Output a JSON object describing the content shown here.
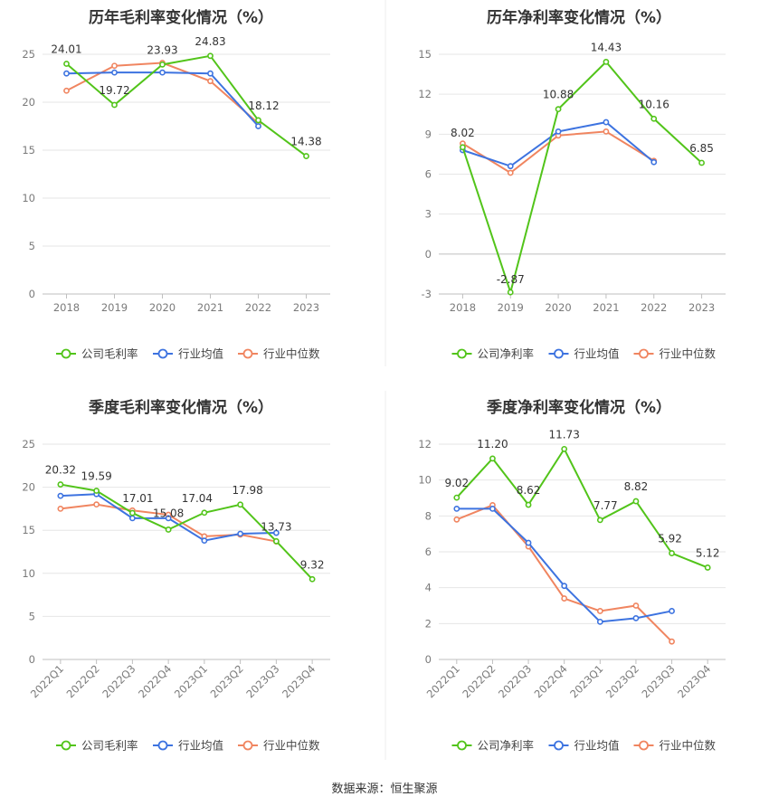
{
  "source": "数据来源：恒生聚源",
  "colors": {
    "company": "#52c41a",
    "industry_avg": "#3d73e0",
    "industry_median": "#f08560"
  },
  "chart_data": [
    {
      "type": "line",
      "title": "历年毛利率变化情况（%）",
      "categories": [
        "2018",
        "2019",
        "2020",
        "2021",
        "2022",
        "2023"
      ],
      "ylim": [
        0,
        25
      ],
      "yticks": [
        "0",
        "5",
        "10",
        "15",
        "20",
        "25"
      ],
      "legend_position": "bottom",
      "series": [
        {
          "name": "公司毛利率",
          "values": [
            24.01,
            19.72,
            23.93,
            24.83,
            18.12,
            14.38
          ],
          "labels": [
            "24.01",
            "19.72",
            "23.93",
            "24.83",
            "18.12",
            "14.38"
          ]
        },
        {
          "name": "行业均值",
          "values": [
            23.0,
            23.1,
            23.1,
            23.0,
            17.5,
            null
          ]
        },
        {
          "name": "行业中位数",
          "values": [
            21.2,
            23.8,
            24.1,
            22.2,
            17.8,
            null
          ]
        }
      ]
    },
    {
      "type": "line",
      "title": "历年净利率变化情况（%）",
      "categories": [
        "2018",
        "2019",
        "2020",
        "2021",
        "2022",
        "2023"
      ],
      "ylim": [
        -3,
        15
      ],
      "yticks": [
        "-3",
        "0",
        "3",
        "6",
        "9",
        "12",
        "15"
      ],
      "legend_position": "bottom",
      "series": [
        {
          "name": "公司净利率",
          "values": [
            8.02,
            -2.87,
            10.88,
            14.43,
            10.16,
            6.85
          ],
          "labels": [
            "8.02",
            "-2.87",
            "10.88",
            "14.43",
            "10.16",
            "6.85"
          ]
        },
        {
          "name": "行业均值",
          "values": [
            7.8,
            6.6,
            9.2,
            9.9,
            6.9,
            null
          ]
        },
        {
          "name": "行业中位数",
          "values": [
            8.3,
            6.1,
            8.9,
            9.2,
            7.0,
            null
          ]
        }
      ]
    },
    {
      "type": "line",
      "title": "季度毛利率变化情况（%）",
      "categories": [
        "2022Q1",
        "2022Q2",
        "2022Q3",
        "2022Q4",
        "2023Q1",
        "2023Q2",
        "2023Q3",
        "2023Q4"
      ],
      "ylim": [
        0,
        25
      ],
      "yticks": [
        "0",
        "5",
        "10",
        "15",
        "20",
        "25"
      ],
      "legend_position": "bottom",
      "series": [
        {
          "name": "公司毛利率",
          "values": [
            20.32,
            19.59,
            17.01,
            15.08,
            17.04,
            17.98,
            13.73,
            9.32
          ],
          "labels": [
            "20.32",
            "19.59",
            "17.01",
            "15.08",
            "17.04",
            "17.98",
            "13.73",
            "9.32"
          ]
        },
        {
          "name": "行业均值",
          "values": [
            19.0,
            19.2,
            16.4,
            16.4,
            13.8,
            14.6,
            14.7,
            null
          ]
        },
        {
          "name": "行业中位数",
          "values": [
            17.5,
            18.0,
            17.3,
            16.8,
            14.3,
            14.5,
            13.7,
            null
          ]
        }
      ]
    },
    {
      "type": "line",
      "title": "季度净利率变化情况（%）",
      "categories": [
        "2022Q1",
        "2022Q2",
        "2022Q3",
        "2022Q4",
        "2023Q1",
        "2023Q2",
        "2023Q3",
        "2023Q4"
      ],
      "ylim": [
        0,
        12
      ],
      "yticks": [
        "0",
        "2",
        "4",
        "6",
        "8",
        "10",
        "12"
      ],
      "legend_position": "bottom",
      "series": [
        {
          "name": "公司净利率",
          "values": [
            9.02,
            11.2,
            8.62,
            11.73,
            7.77,
            8.82,
            5.92,
            5.12
          ],
          "labels": [
            "9.02",
            "11.20",
            "8.62",
            "11.73",
            "7.77",
            "8.82",
            "5.92",
            "5.12"
          ]
        },
        {
          "name": "行业均值",
          "values": [
            8.4,
            8.4,
            6.5,
            4.1,
            2.1,
            2.3,
            2.7,
            null
          ]
        },
        {
          "name": "行业中位数",
          "values": [
            7.8,
            8.6,
            6.3,
            3.4,
            2.7,
            3.0,
            1.0,
            null
          ]
        }
      ]
    }
  ]
}
